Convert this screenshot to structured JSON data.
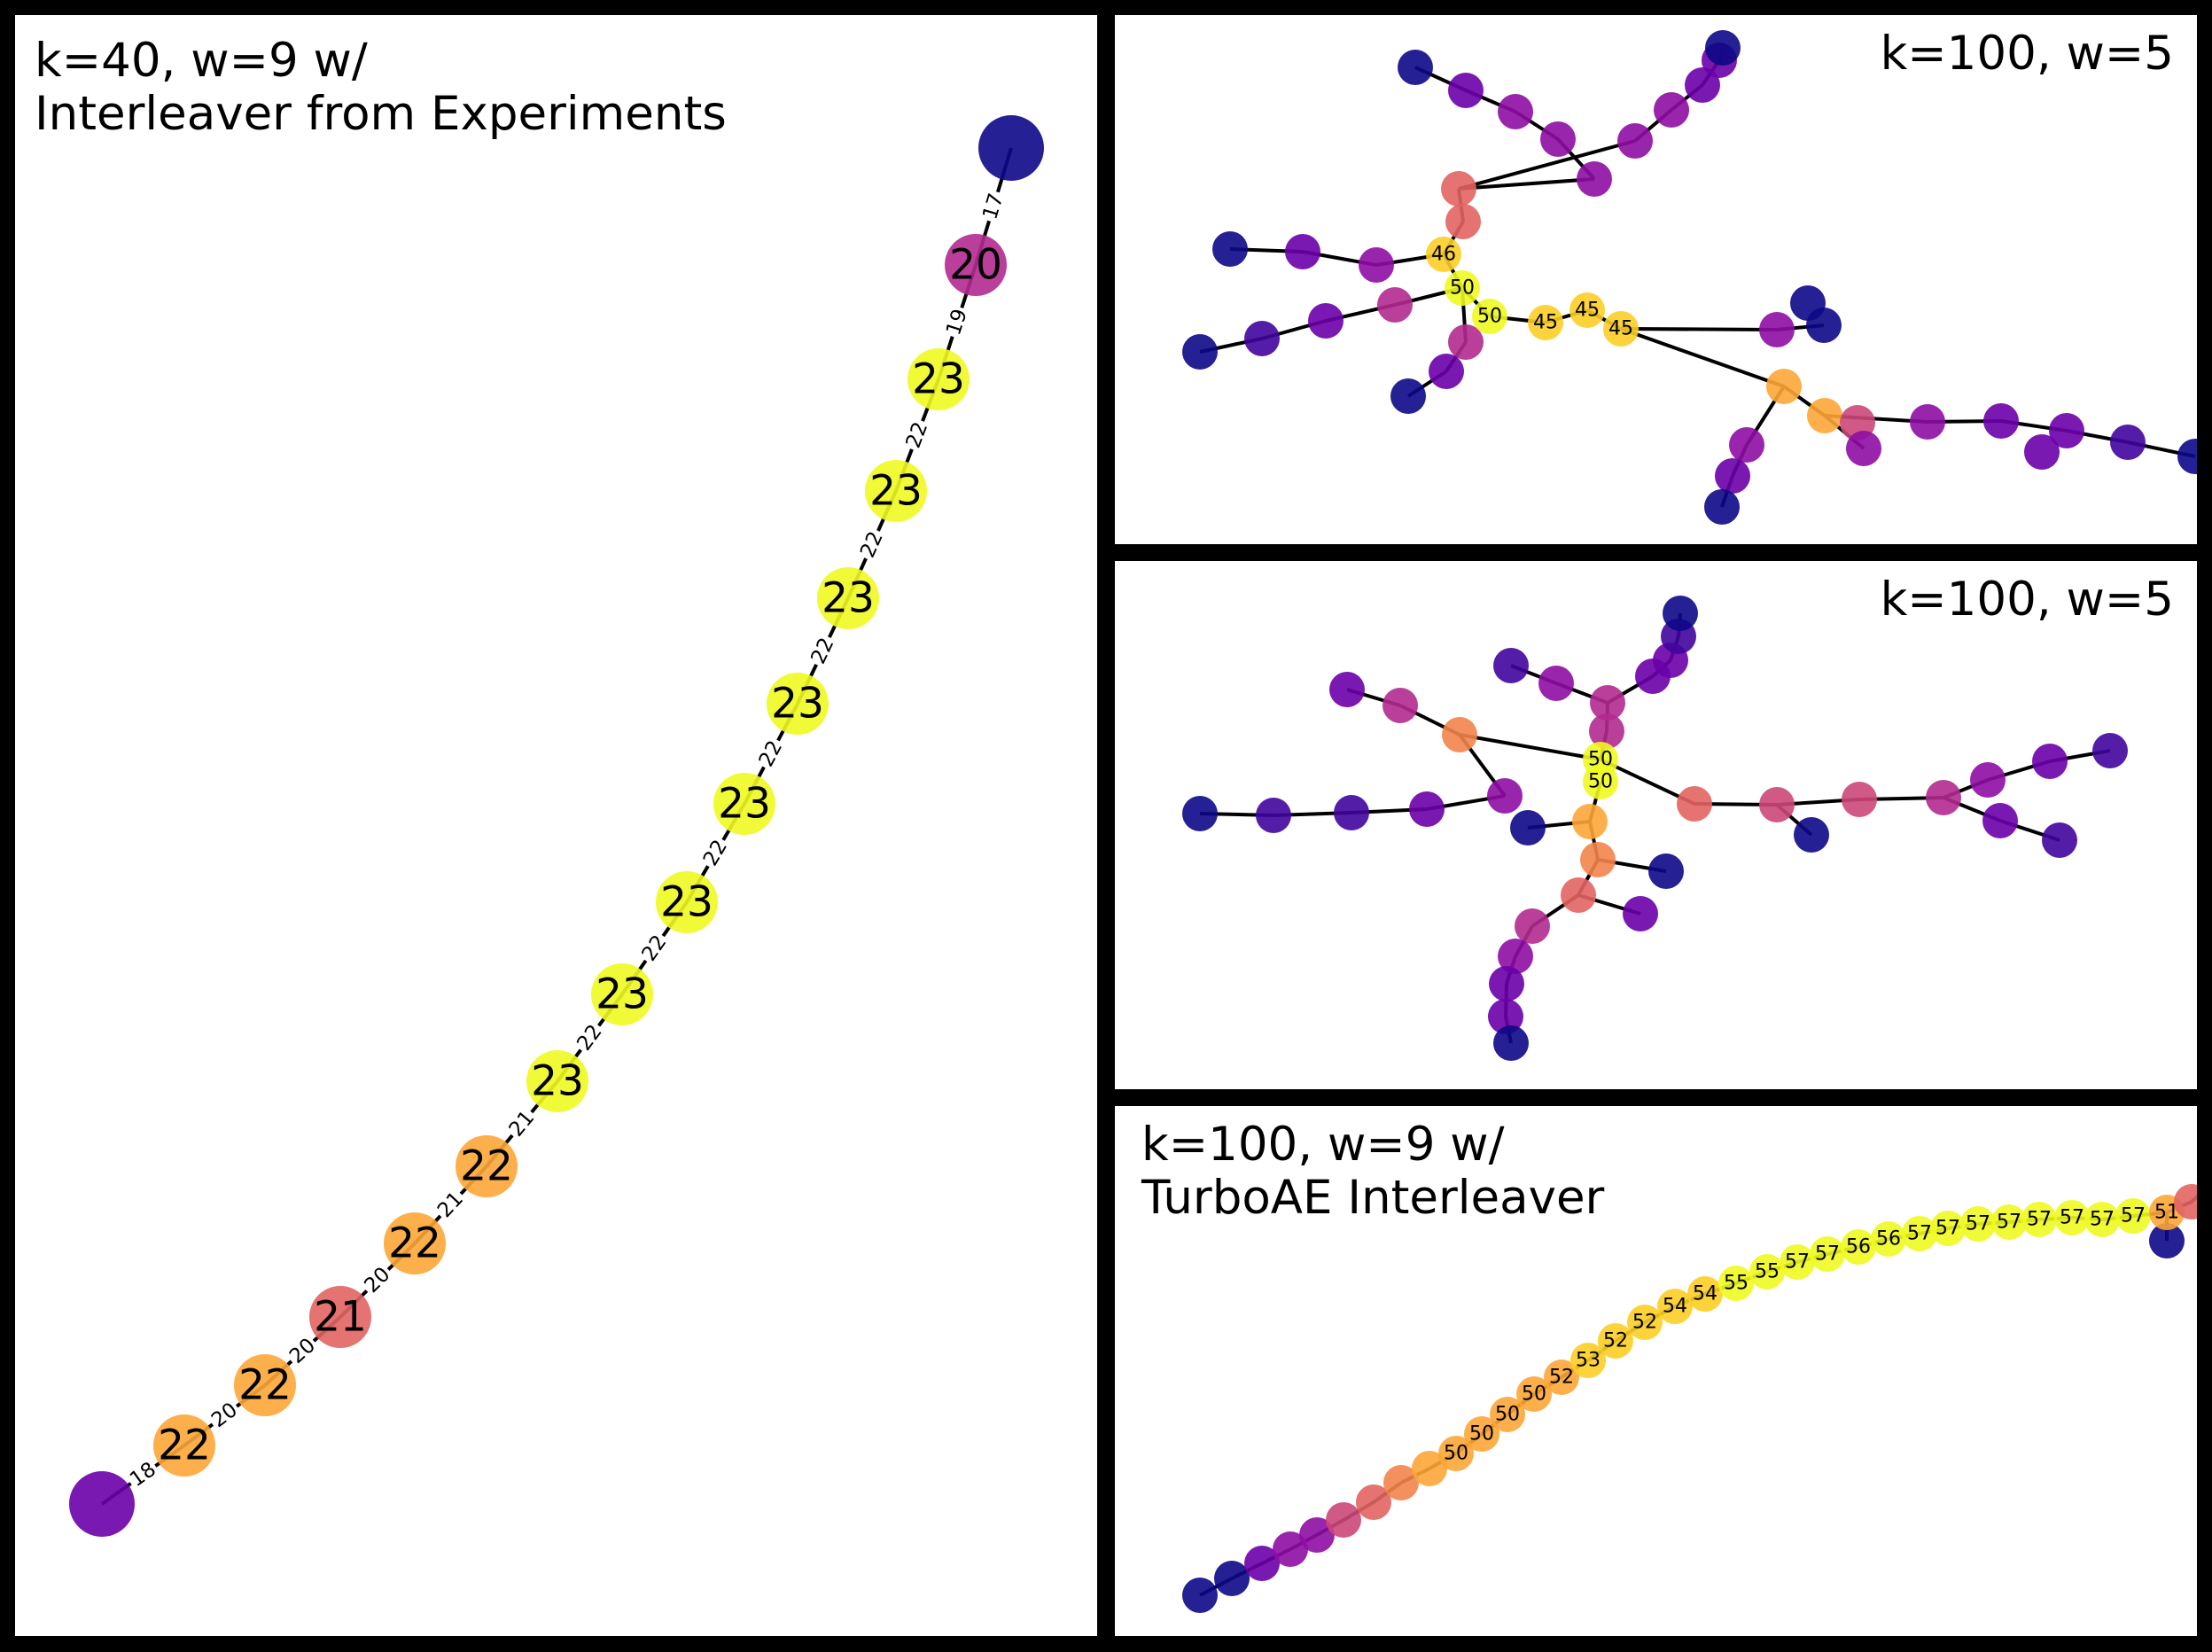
{
  "panels": [
    {
      "id": "p1",
      "title_lines": [
        "k=40, w=9 w/",
        "Interleaver from Experiments"
      ],
      "nodes": [
        {
          "label": "",
          "color": "#0d0887"
        },
        {
          "label": "20",
          "color": "#b12a90"
        },
        {
          "label": "23",
          "color": "#f0f921"
        },
        {
          "label": "23",
          "color": "#f0f921"
        },
        {
          "label": "23",
          "color": "#f0f921"
        },
        {
          "label": "23",
          "color": "#f0f921"
        },
        {
          "label": "23",
          "color": "#f0f921"
        },
        {
          "label": "23",
          "color": "#f0f921"
        },
        {
          "label": "23",
          "color": "#f0f921"
        },
        {
          "label": "23",
          "color": "#f0f921"
        },
        {
          "label": "22",
          "color": "#fca636"
        },
        {
          "label": "22",
          "color": "#fca636"
        },
        {
          "label": "21",
          "color": "#e16462"
        },
        {
          "label": "22",
          "color": "#fca636"
        },
        {
          "label": "22",
          "color": "#fca636"
        },
        {
          "label": "",
          "color": "#6a00a8"
        }
      ],
      "edge_labels": [
        "17",
        "19",
        "22",
        "22",
        "22",
        "22",
        "22",
        "22",
        "22",
        "21",
        "21",
        "20",
        "20",
        "20",
        "18"
      ]
    },
    {
      "id": "p2",
      "title_lines": [
        "k=100, w=5"
      ],
      "node_labels": [
        "46",
        "50",
        "50",
        "45",
        "45",
        "45"
      ]
    },
    {
      "id": "p3",
      "title_lines": [
        "k=100, w=5"
      ],
      "node_labels": [
        "50",
        "50"
      ]
    },
    {
      "id": "p4",
      "title_lines": [
        "k=100, w=9 w/",
        "TurboAE Interleaver"
      ],
      "node_labels": [
        "50",
        "50",
        "50",
        "52",
        "53",
        "52",
        "52",
        "54",
        "55",
        "55",
        "57",
        "57",
        "56",
        "57",
        "57",
        "57",
        "57",
        "57",
        "57",
        "57",
        "51"
      ]
    }
  ]
}
